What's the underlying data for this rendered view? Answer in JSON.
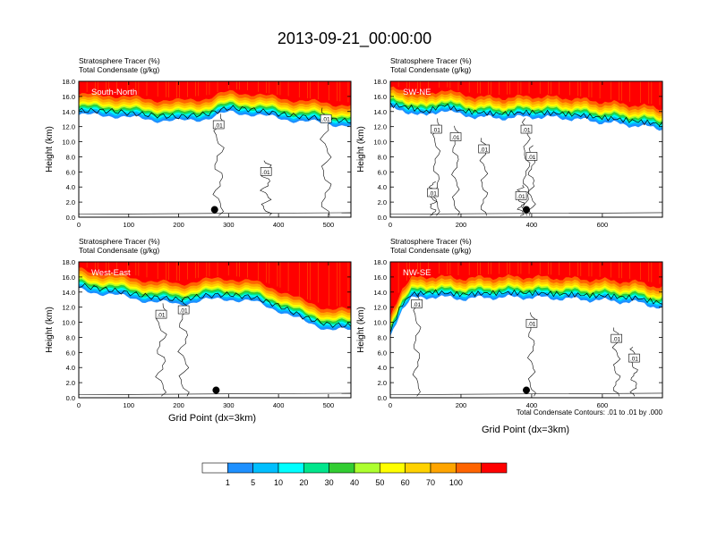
{
  "chart_data": {
    "type": "heatmap",
    "title": "2013-09-21_00:00:00",
    "xlabel": "Grid Point (dx=3km)",
    "ylabel": "Height (km)",
    "panel_line1": "Stratosphere Tracer   (%)",
    "panel_line2": "Total Condensate   (g/kg)",
    "contour_note": "Total Condensate Contours: .01 to .01 by .000",
    "ylim": [
      0,
      18
    ],
    "yticks": [
      "0.0",
      "2.0",
      "4.0",
      "6.0",
      "8.0",
      "10.0",
      "12.0",
      "14.0",
      "16.0",
      "18.0"
    ],
    "panels": [
      {
        "name": "South-North",
        "xlim": [
          0,
          545
        ],
        "xticks": [
          0,
          100,
          200,
          300,
          400,
          500
        ],
        "tropopause_km": [
          [
            0,
            14.4
          ],
          [
            60,
            14.4
          ],
          [
            100,
            14.1
          ],
          [
            150,
            13.8
          ],
          [
            200,
            13.6
          ],
          [
            260,
            14.0
          ],
          [
            300,
            14.8
          ],
          [
            340,
            14.6
          ],
          [
            400,
            14.0
          ],
          [
            450,
            13.6
          ],
          [
            500,
            13.3
          ],
          [
            545,
            13.0
          ]
        ],
        "contour_labels": [
          {
            "text": ".01",
            "x": 280,
            "y": 12.2
          },
          {
            "text": ".01",
            "x": 375,
            "y": 6.0
          },
          {
            "text": ".01",
            "x": 495,
            "y": 13.0
          }
        ],
        "marker": {
          "x": 272,
          "y": 1.0
        }
      },
      {
        "name": "SW-NE",
        "xlim": [
          0,
          770
        ],
        "xticks": [
          0,
          200,
          400,
          600
        ],
        "tropopause_km": [
          [
            0,
            15.2
          ],
          [
            60,
            14.8
          ],
          [
            100,
            14.2
          ],
          [
            150,
            15.2
          ],
          [
            200,
            14.4
          ],
          [
            300,
            14.0
          ],
          [
            400,
            14.2
          ],
          [
            500,
            14.0
          ],
          [
            600,
            13.5
          ],
          [
            700,
            13.0
          ],
          [
            770,
            12.6
          ]
        ],
        "contour_labels": [
          {
            "text": ".01",
            "x": 130,
            "y": 11.6
          },
          {
            "text": ".01",
            "x": 185,
            "y": 10.6
          },
          {
            "text": ".01",
            "x": 265,
            "y": 9.0
          },
          {
            "text": ".01",
            "x": 385,
            "y": 11.6
          },
          {
            "text": ".01",
            "x": 400,
            "y": 8.0
          },
          {
            "text": ".01",
            "x": 120,
            "y": 3.2
          },
          {
            "text": ".01",
            "x": 370,
            "y": 2.8
          }
        ],
        "marker": {
          "x": 385,
          "y": 1.0
        }
      },
      {
        "name": "West-East",
        "xlim": [
          0,
          545
        ],
        "xticks": [
          0,
          100,
          200,
          300,
          400,
          500
        ],
        "tropopause_km": [
          [
            0,
            15.2
          ],
          [
            80,
            14.4
          ],
          [
            150,
            13.6
          ],
          [
            200,
            13.3
          ],
          [
            250,
            13.8
          ],
          [
            300,
            14.0
          ],
          [
            350,
            13.6
          ],
          [
            400,
            12.5
          ],
          [
            450,
            11.0
          ],
          [
            500,
            10.0
          ],
          [
            545,
            9.8
          ]
        ],
        "contour_labels": [
          {
            "text": ".01",
            "x": 165,
            "y": 11.0
          },
          {
            "text": ".01",
            "x": 210,
            "y": 11.6
          }
        ],
        "marker": {
          "x": 275,
          "y": 1.0
        }
      },
      {
        "name": "NW-SE",
        "xlim": [
          0,
          770
        ],
        "xticks": [
          0,
          200,
          400,
          600
        ],
        "tropopause_km": [
          [
            0,
            9.0
          ],
          [
            30,
            12.5
          ],
          [
            60,
            14.0
          ],
          [
            120,
            14.3
          ],
          [
            200,
            14.0
          ],
          [
            300,
            14.2
          ],
          [
            400,
            14.2
          ],
          [
            500,
            14.0
          ],
          [
            600,
            13.8
          ],
          [
            700,
            13.5
          ],
          [
            770,
            12.8
          ]
        ],
        "contour_labels": [
          {
            "text": ".01",
            "x": 75,
            "y": 12.4
          },
          {
            "text": ".01",
            "x": 400,
            "y": 9.8
          },
          {
            "text": ".01",
            "x": 640,
            "y": 7.8
          },
          {
            "text": ".01",
            "x": 690,
            "y": 5.2
          }
        ],
        "marker": {
          "x": 385,
          "y": 1.0
        }
      }
    ],
    "colorbar": {
      "levels": [
        "1",
        "5",
        "10",
        "20",
        "30",
        "40",
        "50",
        "60",
        "70",
        "100"
      ],
      "colors": [
        "#ffffff",
        "#1e90ff",
        "#00bfff",
        "#00ffff",
        "#00e68c",
        "#32cd32",
        "#adff2f",
        "#ffff00",
        "#ffd200",
        "#ffa500",
        "#ff6400",
        "#ff0000"
      ]
    }
  }
}
